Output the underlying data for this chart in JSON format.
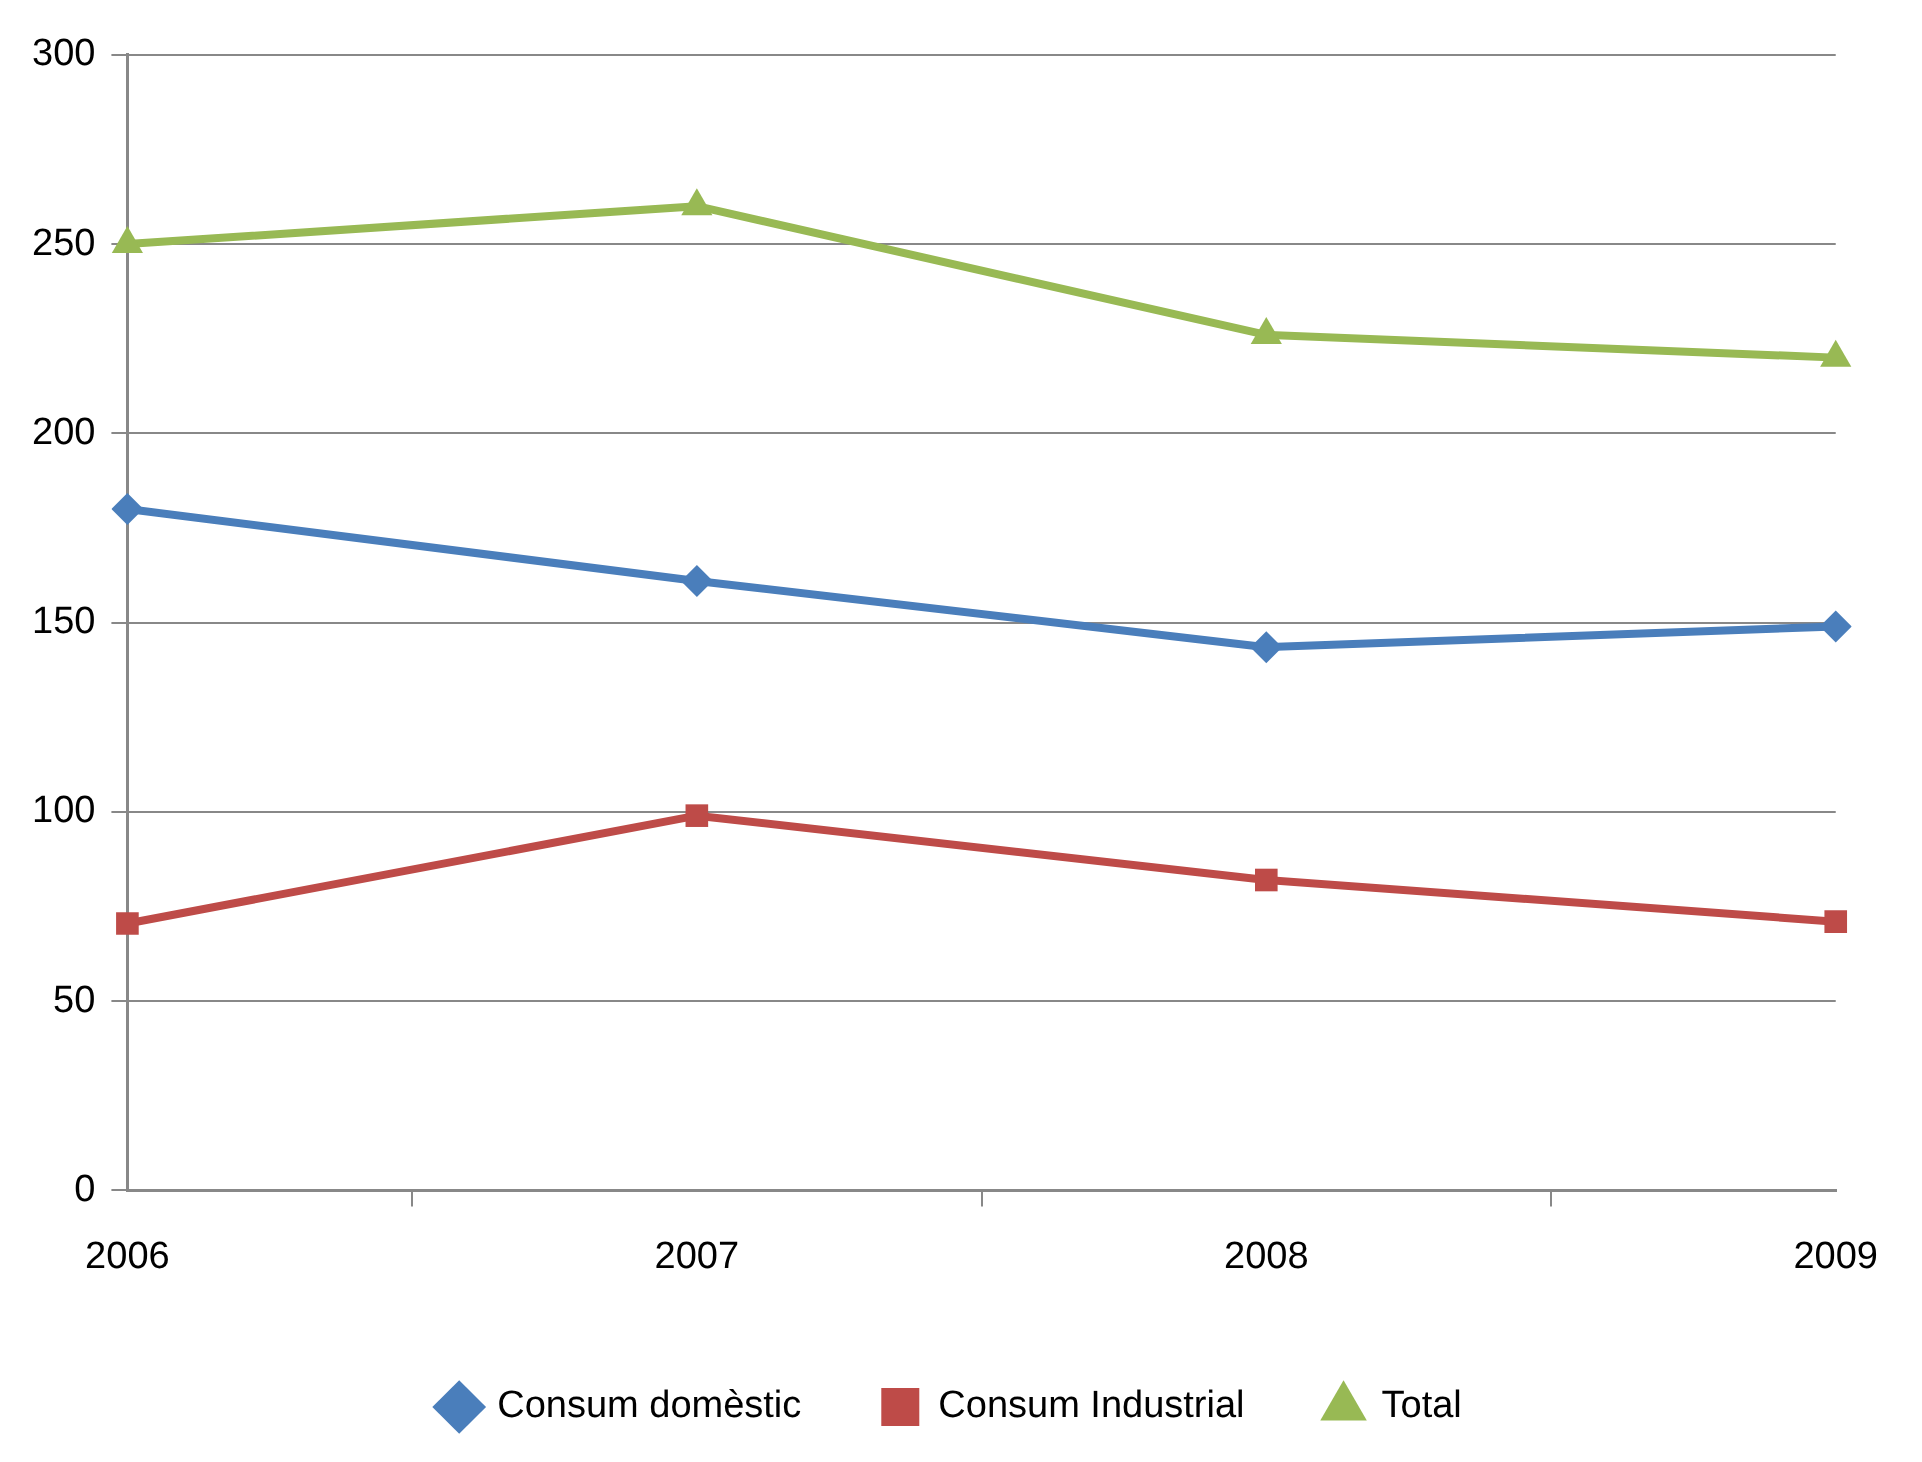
{
  "chart_data": {
    "type": "line",
    "categories": [
      "2006",
      "2007",
      "2008",
      "2009"
    ],
    "series": [
      {
        "name": "Consum domèstic",
        "color": "#4a7ebb",
        "marker": "diamond",
        "values": [
          180,
          161,
          143.5,
          149
        ]
      },
      {
        "name": "Consum Industrial",
        "color": "#be4b48",
        "marker": "square",
        "values": [
          70.5,
          99,
          82,
          71
        ]
      },
      {
        "name": "Total",
        "color": "#98b954",
        "marker": "triangle",
        "values": [
          250,
          260,
          226,
          220
        ]
      }
    ],
    "ylim": [
      0,
      300
    ],
    "yticks": [
      0,
      50,
      100,
      150,
      200,
      250,
      300
    ],
    "grid": "y",
    "legend": "bottom",
    "line_style": "solid"
  }
}
